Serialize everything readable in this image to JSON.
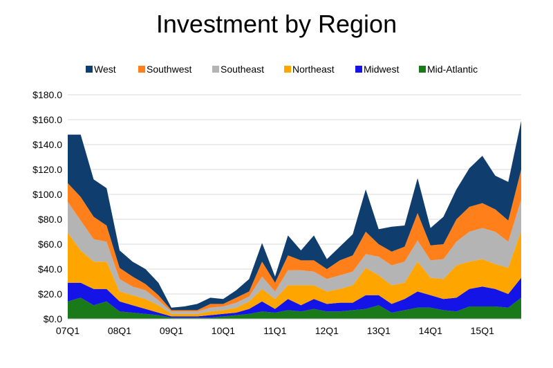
{
  "chart_data": {
    "type": "area",
    "stacked": true,
    "title": "Investment by Region",
    "xlabel": "",
    "ylabel": "",
    "ylim": [
      0,
      180
    ],
    "ytick_values": [
      0,
      20,
      40,
      60,
      80,
      100,
      120,
      140,
      160,
      180
    ],
    "ytick_labels": [
      "$0.0",
      "$20.0",
      "$40.0",
      "$60.0",
      "$80.0",
      "$100.0",
      "$120.0",
      "$140.0",
      "$160.0",
      "$180.0"
    ],
    "grid": "horizontal",
    "legend_position": "top",
    "x": [
      "07Q1",
      "07Q2",
      "07Q3",
      "07Q4",
      "08Q1",
      "08Q2",
      "08Q3",
      "08Q4",
      "09Q1",
      "09Q2",
      "09Q3",
      "09Q4",
      "10Q1",
      "10Q2",
      "10Q3",
      "10Q4",
      "11Q1",
      "11Q2",
      "11Q3",
      "11Q4",
      "12Q1",
      "12Q2",
      "12Q3",
      "12Q4",
      "13Q1",
      "13Q2",
      "13Q3",
      "13Q4",
      "14Q1",
      "14Q2",
      "14Q3",
      "14Q4",
      "15Q1",
      "15Q2",
      "15Q3",
      "15Q4"
    ],
    "xtick_labels": [
      "07Q1",
      "08Q1",
      "09Q1",
      "10Q1",
      "11Q1",
      "12Q1",
      "13Q1",
      "14Q1",
      "15Q1"
    ],
    "colors": {
      "Mid-Atlantic": "#1a7a1a",
      "Midwest": "#1414e6",
      "Northeast": "#ffa500",
      "Southeast": "#b4b4b4",
      "Southwest": "#ff7f1a",
      "West": "#0f3d6e"
    },
    "series": [
      {
        "name": "Mid-Atlantic",
        "values": [
          14,
          17,
          11,
          14,
          6,
          5,
          4,
          3,
          1,
          1,
          1,
          1,
          2,
          3,
          4,
          6,
          5,
          7,
          6,
          8,
          6,
          6,
          7,
          8,
          11,
          5,
          7,
          9,
          9,
          7,
          6,
          10,
          10,
          10,
          9,
          17
        ]
      },
      {
        "name": "Midwest",
        "values": [
          15,
          12,
          13,
          10,
          8,
          6,
          4,
          2,
          1,
          1,
          1,
          2,
          2,
          2,
          4,
          8,
          3,
          9,
          5,
          8,
          6,
          7,
          6,
          11,
          8,
          7,
          9,
          13,
          10,
          9,
          11,
          14,
          16,
          14,
          11,
          16
        ]
      },
      {
        "name": "Northeast",
        "values": [
          40,
          26,
          22,
          22,
          8,
          8,
          8,
          6,
          2,
          2,
          2,
          3,
          3,
          4,
          6,
          10,
          8,
          11,
          16,
          11,
          10,
          11,
          14,
          22,
          16,
          15,
          13,
          24,
          14,
          16,
          26,
          22,
          22,
          20,
          21,
          38
        ]
      },
      {
        "name": "Southeast",
        "values": [
          25,
          24,
          18,
          16,
          10,
          7,
          7,
          4,
          2,
          2,
          2,
          3,
          3,
          4,
          4,
          10,
          6,
          12,
          12,
          11,
          10,
          11,
          11,
          11,
          15,
          16,
          17,
          17,
          14,
          16,
          19,
          24,
          25,
          26,
          21,
          25
        ]
      },
      {
        "name": "Southwest",
        "values": [
          15,
          19,
          18,
          13,
          9,
          8,
          5,
          4,
          1,
          1,
          1,
          3,
          2,
          4,
          4,
          12,
          7,
          12,
          8,
          9,
          8,
          12,
          13,
          18,
          10,
          11,
          12,
          22,
          12,
          12,
          18,
          20,
          20,
          18,
          17,
          24
        ]
      },
      {
        "name": "West",
        "values": [
          39,
          50,
          30,
          30,
          14,
          12,
          12,
          10,
          2,
          3,
          5,
          5,
          4,
          6,
          10,
          15,
          5,
          16,
          8,
          20,
          8,
          11,
          17,
          34,
          12,
          20,
          17,
          28,
          14,
          22,
          24,
          31,
          38,
          27,
          31,
          39
        ]
      }
    ]
  }
}
